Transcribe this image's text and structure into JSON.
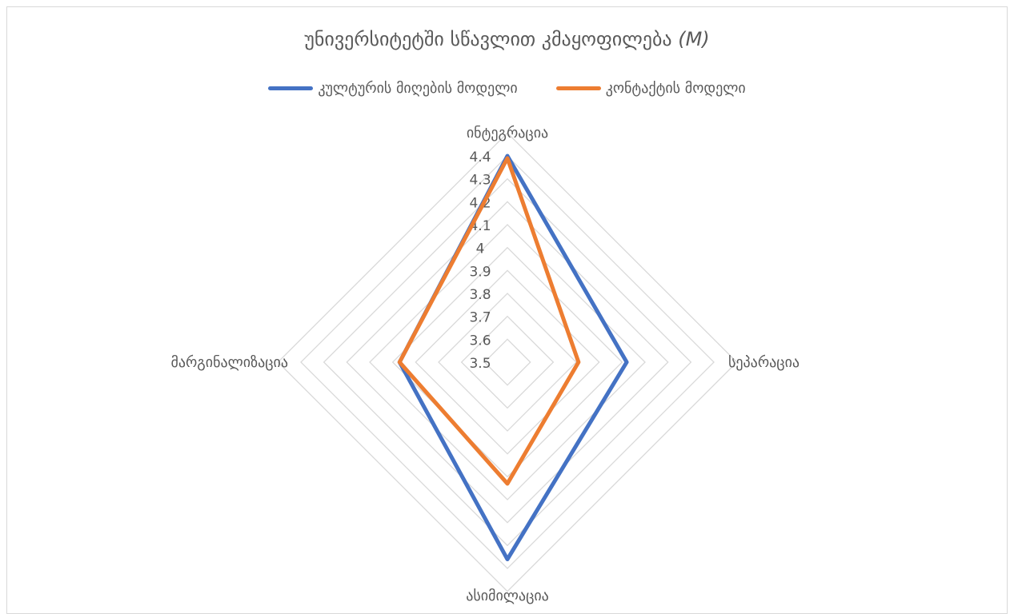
{
  "title": {
    "main": "უნივერსიტეტში სწავლით კმაყოფილება",
    "italic": "(M)"
  },
  "legend": [
    {
      "label": "კულტურის მიღების მოდელი",
      "color": "#4472c4"
    },
    {
      "label": "კონტაქტის მოდელი",
      "color": "#ed7d31"
    }
  ],
  "colors": {
    "grid": "#d9d9d9",
    "text": "#595959"
  },
  "chart_data": {
    "type": "radar",
    "categories": [
      "ინტეგრაცია",
      "სეპარაცია",
      "ასიმილაცია",
      "მარგინალიზაცია"
    ],
    "rlim": [
      3.5,
      4.4
    ],
    "ticks": [
      "3.5",
      "3.6",
      "3.7",
      "3.8",
      "3.9",
      "4",
      "4.1",
      "4.2",
      "4.3",
      "4.4"
    ],
    "series": [
      {
        "name": "კულტურის მიღების მოდელი",
        "values": [
          4.4,
          4.02,
          4.36,
          3.97
        ]
      },
      {
        "name": "კონტაქტის მოდელი",
        "values": [
          4.39,
          3.81,
          4.03,
          3.97
        ]
      }
    ],
    "legend_position": "top"
  }
}
